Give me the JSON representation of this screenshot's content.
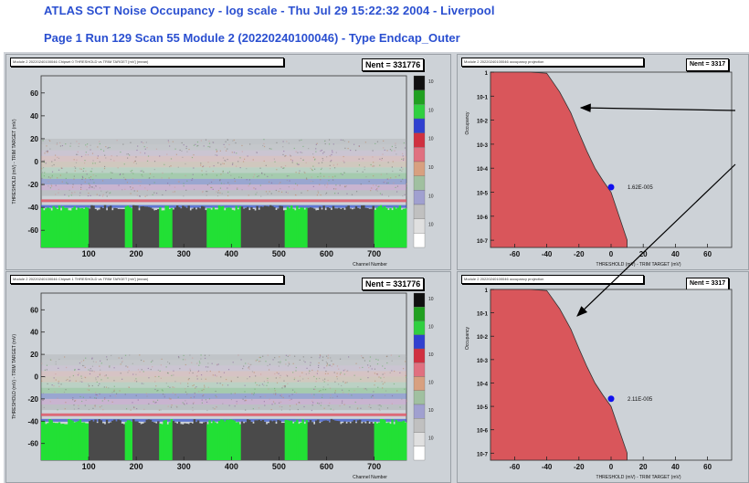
{
  "header": {
    "line1": "ATLAS SCT Noise Occupancy  -  log scale  -  Thu Jul 29 15:22:32 2004  -  Liverpool",
    "line2": "Page 1   Run 129   Scan 55   Module 2 (20220240100046) - Type Endcap_Outer"
  },
  "colors": {
    "page_bg": "#cfd3d8",
    "title_text": "#2a4fd0",
    "fill_red": "#d9565b",
    "green": "#22e035",
    "dark": "#4a4a4a",
    "marker": "#1010ee"
  },
  "panels": {
    "top_left": {
      "title": "Module 2 20220240100046 Chipset 0 THRESHOLD vs TRIM TARGET [mV] (mean)",
      "stats": "Nent = 331776"
    },
    "top_right": {
      "title": "Module 2 20220240100046 occupancy projection",
      "stats": "Nent = 3317",
      "annotation": "1.62E-005"
    },
    "bottom_left": {
      "title": "Module 2 20220240100046 Chipset 1 THRESHOLD vs TRIM TARGET [mV] (mean)",
      "stats": "Nent = 331776"
    },
    "bottom_right": {
      "title": "Module 2 20220240100046 occupancy projection",
      "stats": "Nent = 3317",
      "annotation": "2.11E-005"
    }
  },
  "chart_data": [
    {
      "type": "heatmap",
      "xlabel": "Channel Number",
      "ylabel": "THRESHOLD (mV) - TRIM TARGET (mV)",
      "xticks": [
        100,
        200,
        300,
        400,
        500,
        600,
        700
      ],
      "yticks": [
        60,
        40,
        20,
        0,
        -20,
        -40,
        -60
      ],
      "xlim": [
        0,
        768
      ],
      "ylim": [
        -75,
        75
      ],
      "scale": "log"
    },
    {
      "type": "area",
      "xlabel": "THRESHOLD (mV) - TRIM TARGET (mV)",
      "ylabel": "Occupancy",
      "xticks": [
        -60,
        -40,
        -20,
        0,
        20,
        40,
        60
      ],
      "yticks": [
        "1",
        "10-1",
        "10-2",
        "10-3",
        "10-4",
        "10-5",
        "10-6",
        "10-7"
      ],
      "xlim": [
        -75,
        75
      ],
      "yscale": "log",
      "x": [
        -75,
        -50,
        -40,
        -32,
        -25,
        -20,
        -15,
        -10,
        -5,
        0,
        5,
        10
      ],
      "y": [
        1,
        1,
        0.9,
        0.15,
        0.02,
        0.003,
        0.0005,
        0.0001,
        3e-05,
        1e-05,
        1e-06,
        1e-07
      ],
      "marker": {
        "x": 0,
        "y": 1.62e-05,
        "label": "1.62E-005"
      }
    },
    {
      "type": "heatmap",
      "xlabel": "Channel Number",
      "ylabel": "THRESHOLD (mV) - TRIM TARGET (mV)",
      "xticks": [
        100,
        200,
        300,
        400,
        500,
        600,
        700
      ],
      "yticks": [
        60,
        40,
        20,
        0,
        -20,
        -40,
        -60
      ],
      "xlim": [
        0,
        768
      ],
      "ylim": [
        -75,
        75
      ],
      "scale": "log"
    },
    {
      "type": "area",
      "xlabel": "THRESHOLD (mV) - TRIM TARGET (mV)",
      "ylabel": "Occupancy",
      "xticks": [
        -60,
        -40,
        -20,
        0,
        20,
        40,
        60
      ],
      "yticks": [
        "1",
        "10-1",
        "10-2",
        "10-3",
        "10-4",
        "10-5",
        "10-6",
        "10-7"
      ],
      "xlim": [
        -75,
        75
      ],
      "yscale": "log",
      "x": [
        -75,
        -50,
        -40,
        -32,
        -25,
        -20,
        -15,
        -10,
        -5,
        0,
        5,
        10
      ],
      "y": [
        1,
        1,
        0.9,
        0.15,
        0.02,
        0.003,
        0.0005,
        0.0001,
        3e-05,
        1e-05,
        1e-06,
        1e-07
      ],
      "marker": {
        "x": 0,
        "y": 2.11e-05,
        "label": "2.11E-005"
      }
    }
  ]
}
